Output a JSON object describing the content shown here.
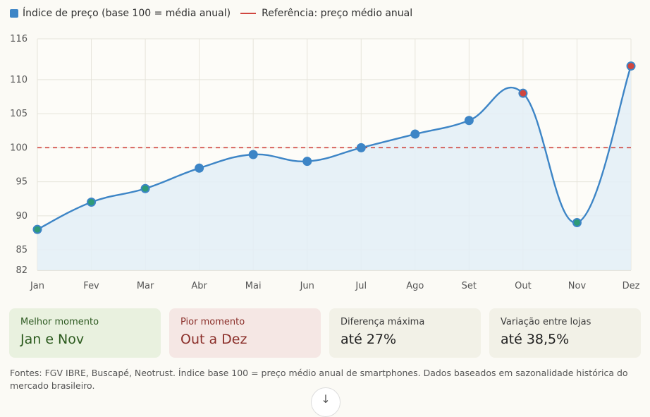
{
  "legend": {
    "series_label": "Índice de preço (base 100 = média anual)",
    "reference_label": "Referência: preço médio anual"
  },
  "colors": {
    "line": "#3d85c6",
    "area": "#e3eef7",
    "reference": "#d0463f",
    "good_point": "#2e9a78",
    "bad_point": "#d0463f",
    "normal_point": "#3d85c6"
  },
  "chart_data": {
    "type": "line",
    "title": "",
    "xlabel": "",
    "ylabel": "",
    "categories": [
      "Jan",
      "Fev",
      "Mar",
      "Abr",
      "Mai",
      "Jun",
      "Jul",
      "Ago",
      "Set",
      "Out",
      "Nov",
      "Dez"
    ],
    "series": [
      {
        "name": "Índice de preço (base 100 = média anual)",
        "values": [
          88,
          92,
          94,
          97,
          99,
          98,
          100,
          102,
          104,
          108,
          89,
          112
        ]
      }
    ],
    "point_status": [
      "good",
      "good",
      "good",
      "normal",
      "normal",
      "normal",
      "normal",
      "normal",
      "normal",
      "bad",
      "good",
      "bad"
    ],
    "reference_line": {
      "label": "Referência: preço médio anual",
      "value": 100
    },
    "ylim": [
      82,
      116
    ],
    "yticks": [
      82,
      85,
      90,
      95,
      100,
      105,
      110,
      116
    ],
    "grid": true,
    "legend_position": "top-left"
  },
  "cards": [
    {
      "label": "Melhor momento",
      "value": "Jan e Nov"
    },
    {
      "label": "Pior momento",
      "value": "Out a Dez"
    },
    {
      "label": "Diferença máxima",
      "value": "até 27%"
    },
    {
      "label": "Variação entre lojas",
      "value": "até 38,5%"
    }
  ],
  "footnote": "Fontes: FGV IBRE, Buscapé, Neotrust. Índice base 100 = preço médio anual de smartphones. Dados baseados em sazonalidade histórica do mercado brasileiro.",
  "scroll_button": {
    "icon": "arrow-down-icon",
    "glyph": "↓"
  }
}
